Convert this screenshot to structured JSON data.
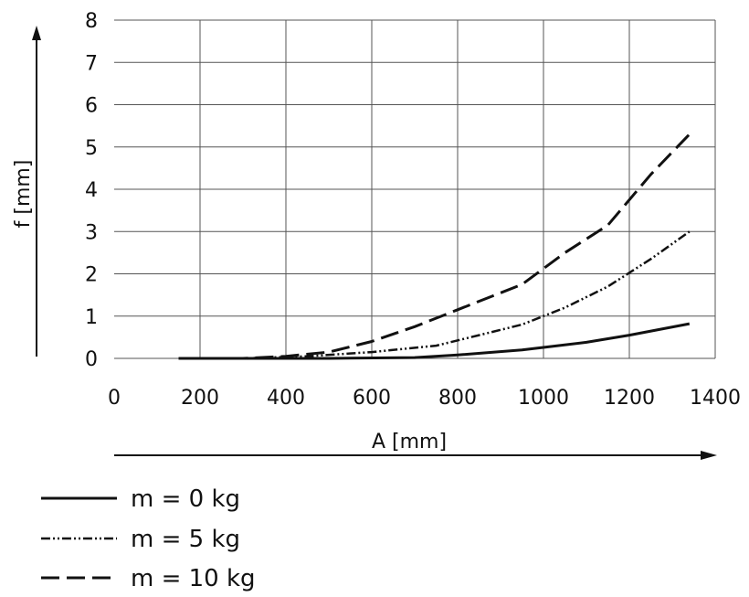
{
  "chart_data": {
    "type": "line",
    "xlabel": "A [mm]",
    "ylabel": "f [mm]",
    "xlim": [
      0,
      1400
    ],
    "ylim": [
      0,
      8
    ],
    "xticks": [
      0,
      200,
      400,
      600,
      800,
      1000,
      1200,
      1400
    ],
    "yticks": [
      0,
      1,
      2,
      3,
      4,
      5,
      6,
      7,
      8
    ],
    "xtick_labels": [
      "0",
      "200",
      "400",
      "600",
      "800",
      "1000",
      "1200",
      "1400"
    ],
    "ytick_labels": [
      "0",
      "1",
      "2",
      "3",
      "4",
      "5",
      "6",
      "7",
      "8"
    ],
    "grid": true,
    "legend_position": "below",
    "series": [
      {
        "name": "m = 0 kg",
        "line_style": "solid",
        "x": [
          150,
          300,
          500,
          700,
          800,
          950,
          1100,
          1200,
          1340
        ],
        "y": [
          0,
          0,
          0,
          0.02,
          0.08,
          0.2,
          0.38,
          0.55,
          0.82
        ]
      },
      {
        "name": "m = 5 kg",
        "line_style": "dash-dot-dot",
        "x": [
          150,
          300,
          450,
          600,
          750,
          850,
          950,
          1050,
          1150,
          1250,
          1340
        ],
        "y": [
          0,
          0,
          0.05,
          0.15,
          0.3,
          0.55,
          0.8,
          1.2,
          1.7,
          2.35,
          3.0
        ]
      },
      {
        "name": "m = 10 kg",
        "line_style": "long-dash",
        "x": [
          150,
          300,
          400,
          500,
          600,
          700,
          800,
          950,
          1050,
          1150,
          1250,
          1340
        ],
        "y": [
          0,
          0,
          0.05,
          0.15,
          0.4,
          0.75,
          1.15,
          1.75,
          2.5,
          3.15,
          4.35,
          5.3
        ]
      }
    ]
  }
}
